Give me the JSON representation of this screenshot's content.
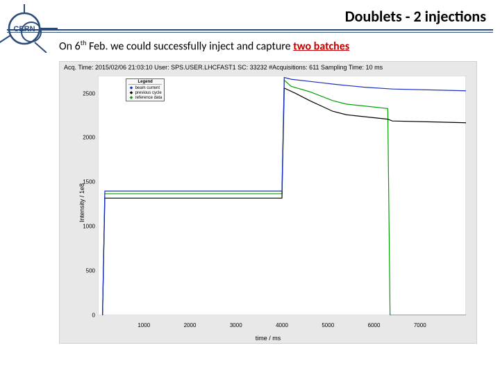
{
  "header": {
    "title": "Doublets - 2 injections"
  },
  "body": {
    "text_prefix": "On 6",
    "text_sup": "th",
    "text_mid": " Feb. we could successfully inject and capture ",
    "text_highlight": "two batches"
  },
  "chart": {
    "type": "line",
    "title_line": "Acq. Time: 2015/02/06 21:03:10 User: SPS.USER.LHCFAST1 SC: 33232 #Acquisitions: 611 Sampling Time: 10 ms",
    "x_label": "time / ms",
    "y_label": "Intensity / 1e8",
    "xlim": [
      0,
      8000
    ],
    "ylim": [
      0,
      2700
    ],
    "x_ticks": [
      1000,
      2000,
      3000,
      4000,
      5000,
      6000,
      7000
    ],
    "y_ticks": [
      0,
      500,
      1000,
      1500,
      2000,
      2500
    ],
    "background_color": "#e8e8e8",
    "plot_bg": "#ffffff",
    "legend": {
      "title": "Legend",
      "items": [
        {
          "label": "beam current",
          "color": "#1b2fbf",
          "marker": "◆"
        },
        {
          "label": "previous cycle",
          "color": "#000000",
          "marker": "◆"
        },
        {
          "label": "reference data",
          "color": "#00a000",
          "marker": "◆"
        }
      ]
    },
    "series": [
      {
        "name": "reference data",
        "color": "#00a000",
        "width": 1.2,
        "points": [
          [
            100,
            0
          ],
          [
            150,
            1370
          ],
          [
            4000,
            1370
          ],
          [
            4050,
            2650
          ],
          [
            4200,
            2580
          ],
          [
            4600,
            2520
          ],
          [
            5100,
            2420
          ],
          [
            5400,
            2380
          ],
          [
            6300,
            2330
          ],
          [
            6350,
            0
          ],
          [
            8000,
            0
          ]
        ]
      },
      {
        "name": "previous cycle",
        "color": "#000000",
        "width": 1.2,
        "points": [
          [
            100,
            0
          ],
          [
            150,
            1320
          ],
          [
            4000,
            1320
          ],
          [
            4050,
            2560
          ],
          [
            4300,
            2500
          ],
          [
            4600,
            2420
          ],
          [
            5100,
            2300
          ],
          [
            5400,
            2260
          ],
          [
            6300,
            2210
          ],
          [
            6400,
            2190
          ],
          [
            8000,
            2170
          ]
        ]
      },
      {
        "name": "beam current",
        "color": "#1b2fbf",
        "width": 1.2,
        "points": [
          [
            100,
            0
          ],
          [
            150,
            1400
          ],
          [
            4000,
            1400
          ],
          [
            4050,
            2680
          ],
          [
            4200,
            2660
          ],
          [
            4700,
            2630
          ],
          [
            5200,
            2600
          ],
          [
            5800,
            2570
          ],
          [
            6400,
            2550
          ],
          [
            8000,
            2530
          ]
        ]
      }
    ]
  },
  "logo": {
    "stroke": "#2a4a7a",
    "label": "CERN"
  }
}
